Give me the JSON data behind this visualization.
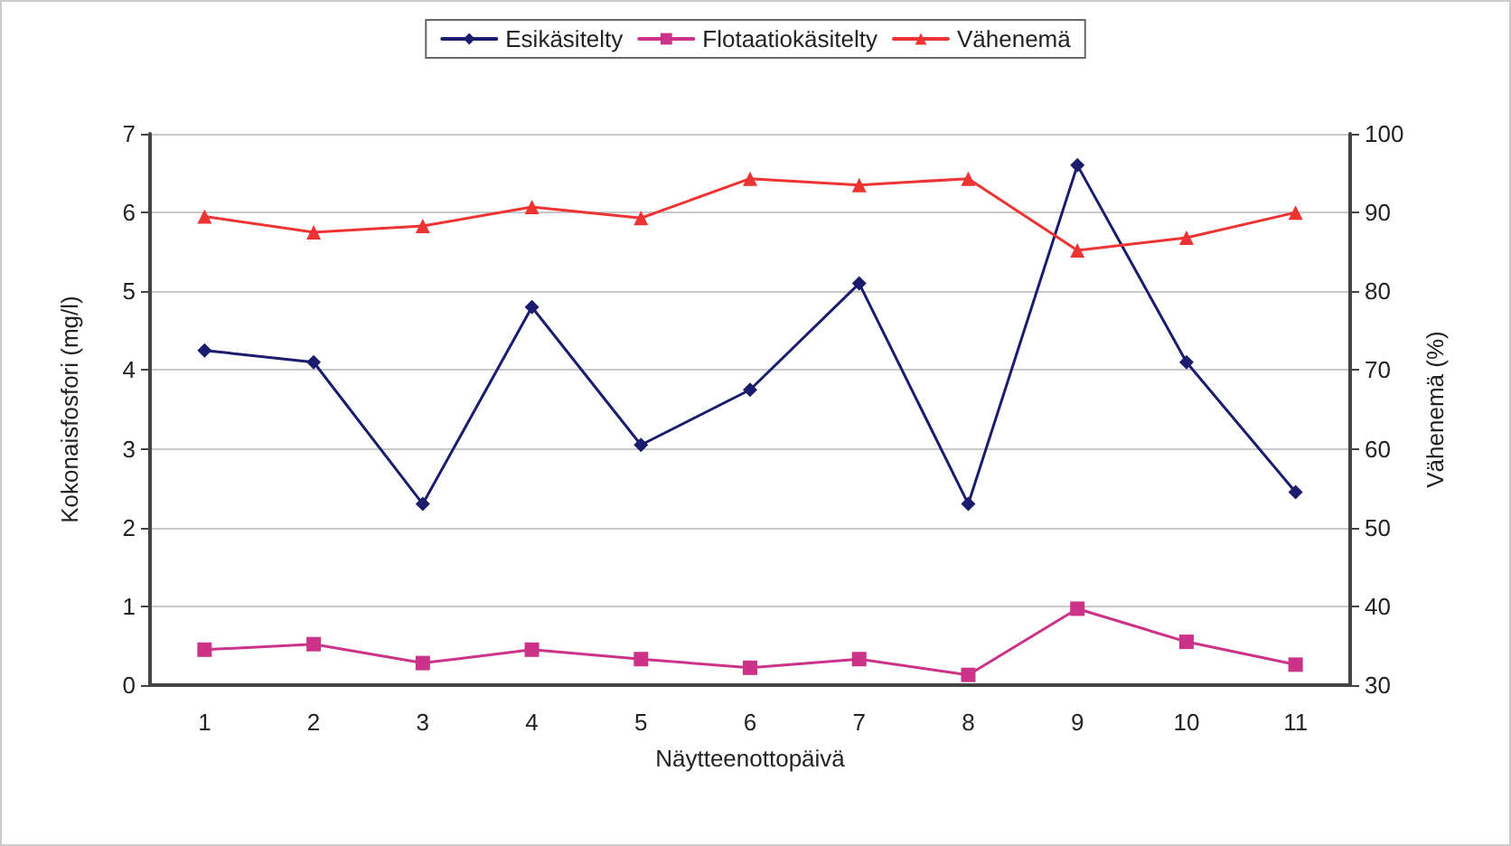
{
  "chart_data": {
    "type": "line",
    "xlabel": "Näytteenottopäivä",
    "ylabel": "Kokonaisfosfori (mg/l)",
    "y2label": "Vähenemä (%)",
    "categories": [
      "1",
      "2",
      "3",
      "4",
      "5",
      "6",
      "7",
      "8",
      "9",
      "10",
      "11"
    ],
    "series": [
      {
        "name": "Esikäsitelty",
        "color": "#1c1c6e",
        "marker": "diamond",
        "values": [
          4.25,
          4.1,
          2.3,
          4.8,
          3.05,
          3.75,
          5.1,
          2.3,
          6.6,
          4.1,
          2.45
        ]
      },
      {
        "name": "Flotaatiokäsitelty",
        "color": "#cc3388",
        "marker": "square",
        "values": [
          0.45,
          0.52,
          0.28,
          0.45,
          0.33,
          0.22,
          0.33,
          0.13,
          0.97,
          0.55,
          0.26
        ]
      },
      {
        "name": "Vähenemä",
        "color": "#ee3333",
        "marker": "triangle",
        "axis": "y2",
        "values": [
          89.5,
          87.5,
          88.3,
          90.7,
          89.3,
          94.3,
          93.5,
          94.3,
          85.2,
          86.8,
          90
        ]
      }
    ],
    "ylim": [
      0,
      7
    ],
    "yticks": [
      0,
      1,
      2,
      3,
      4,
      5,
      6,
      7
    ],
    "y2lim": [
      30,
      100
    ],
    "y2ticks": [
      30,
      40,
      50,
      60,
      70,
      80,
      90,
      100
    ],
    "grid": "y",
    "legend": "top",
    "line_style": "solid"
  }
}
